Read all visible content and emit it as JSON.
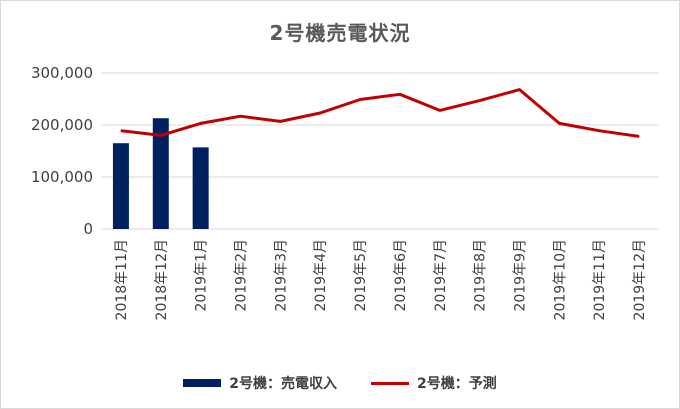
{
  "chart_data": {
    "type": "bar+line",
    "title": "2号機売電状況",
    "categories": [
      "2018年11月",
      "2018年12月",
      "2019年1月",
      "2019年2月",
      "2019年3月",
      "2019年4月",
      "2019年5月",
      "2019年6月",
      "2019年7月",
      "2019年8月",
      "2019年9月",
      "2019年10月",
      "2019年11月",
      "2019年12月"
    ],
    "yticks": [
      "0",
      "100,000",
      "200,000",
      "300,000"
    ],
    "ylim": [
      0,
      300000
    ],
    "grid": true,
    "legend_position": "bottom",
    "series": [
      {
        "name": "2号機：売電収入",
        "kind": "bar",
        "color": "#002060",
        "values": [
          165000,
          213000,
          157000,
          null,
          null,
          null,
          null,
          null,
          null,
          null,
          null,
          null,
          null,
          null
        ]
      },
      {
        "name": "2号機：予測",
        "kind": "line",
        "color": "#c00000",
        "values": [
          189000,
          180000,
          203000,
          217000,
          207000,
          223000,
          249000,
          259000,
          228000,
          247000,
          268000,
          203000,
          189000,
          178000
        ]
      }
    ]
  }
}
